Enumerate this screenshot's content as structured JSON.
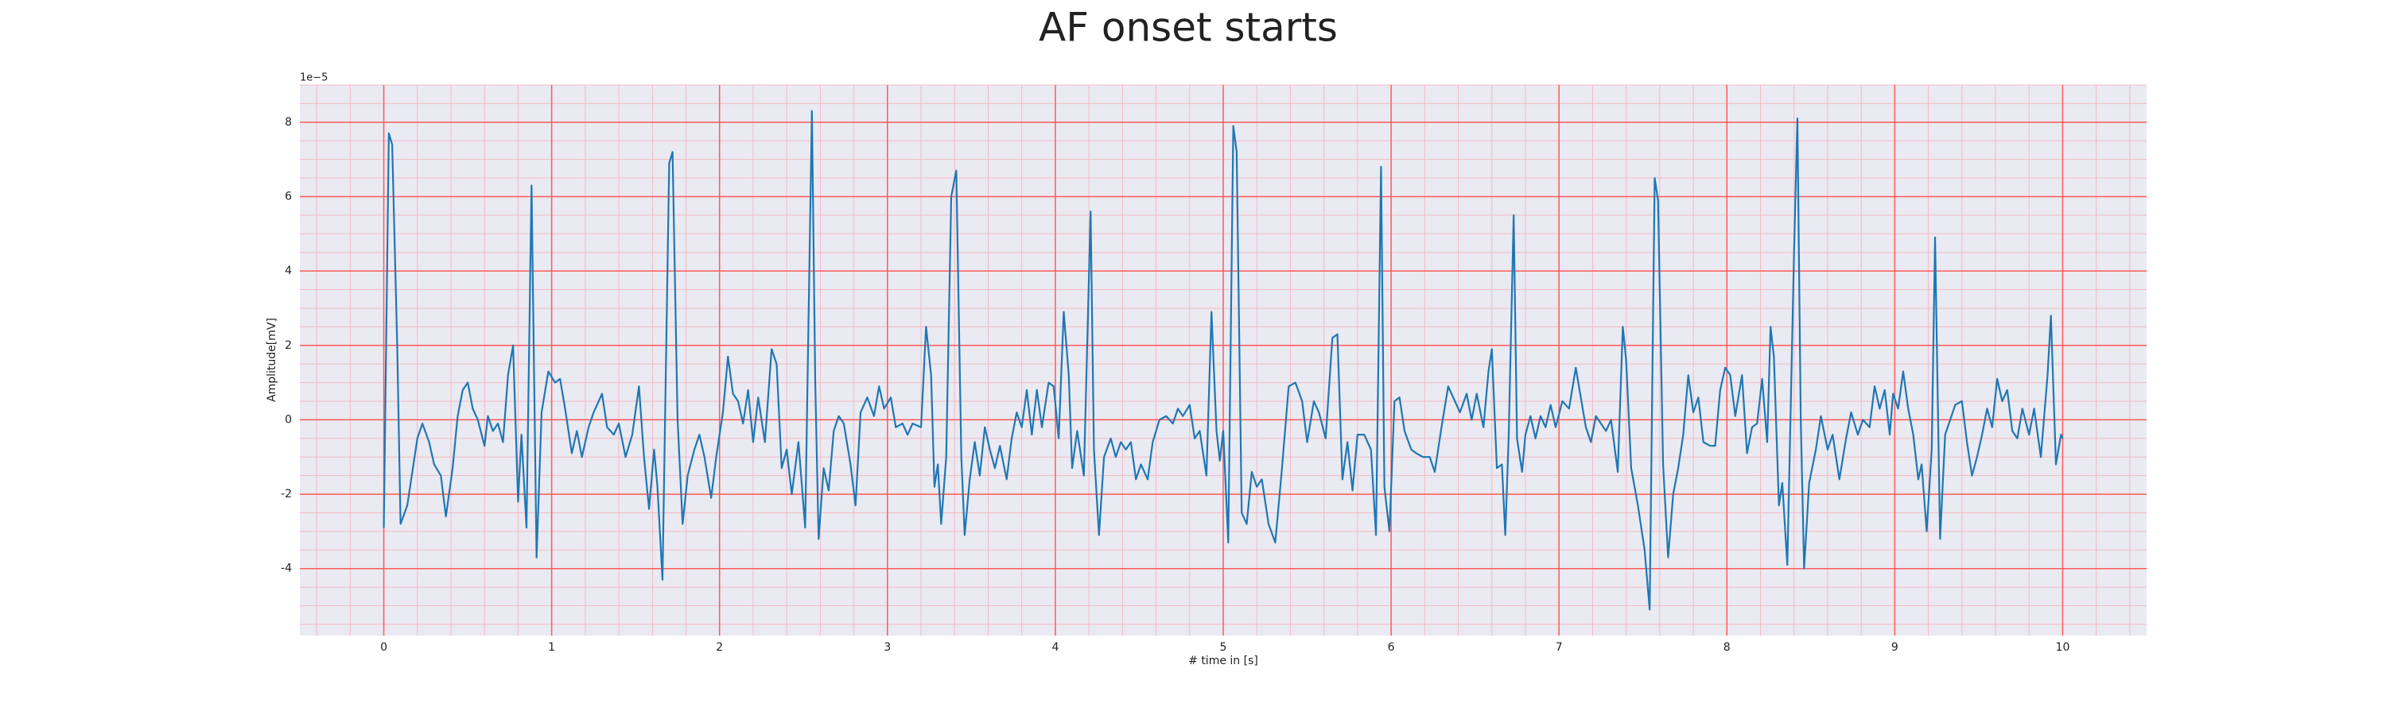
{
  "chart_data": {
    "type": "line",
    "title": "AF onset starts",
    "xlabel": "# time in [s]",
    "ylabel": "Amplitude[mV]",
    "y_offset_label": "1e−5",
    "xlim": [
      -0.5,
      10.5
    ],
    "ylim": [
      -5.8,
      9.0
    ],
    "xticks": [
      0,
      1,
      2,
      3,
      4,
      5,
      6,
      7,
      8,
      9,
      10
    ],
    "yticks": [
      -4,
      -2,
      0,
      2,
      4,
      6,
      8
    ],
    "grid": true,
    "grid_color": "#ff5a5a",
    "minor_grid": true,
    "minor_grid_color": "#f5b8c4",
    "x_minor_step": 0.2,
    "y_minor_step": 0.5,
    "background": "#eaeaf2",
    "series": [
      {
        "color": "#1f77b4",
        "x": [
          0,
          0.03,
          0.05,
          0.08,
          0.1,
          0.14,
          0.2,
          0.23,
          0.27,
          0.3,
          0.34,
          0.37,
          0.41,
          0.44,
          0.47,
          0.5,
          0.53,
          0.56,
          0.6,
          0.62,
          0.65,
          0.68,
          0.71,
          0.74,
          0.77,
          0.8,
          0.82,
          0.85,
          0.88,
          0.91,
          0.94,
          0.98,
          1.02,
          1.05,
          1.08,
          1.12,
          1.15,
          1.18,
          1.22,
          1.25,
          1.3,
          1.33,
          1.37,
          1.4,
          1.44,
          1.48,
          1.52,
          1.55,
          1.58,
          1.61,
          1.63,
          1.66,
          1.7,
          1.72,
          1.75,
          1.78,
          1.81,
          1.85,
          1.88,
          1.91,
          1.95,
          1.98,
          2.02,
          2.05,
          2.08,
          2.11,
          2.14,
          2.17,
          2.2,
          2.23,
          2.27,
          2.31,
          2.34,
          2.37,
          2.4,
          2.43,
          2.47,
          2.51,
          2.55,
          2.57,
          2.59,
          2.62,
          2.65,
          2.68,
          2.71,
          2.74,
          2.78,
          2.81,
          2.84,
          2.88,
          2.92,
          2.95,
          2.98,
          3.02,
          3.05,
          3.09,
          3.12,
          3.15,
          3.2,
          3.23,
          3.26,
          3.28,
          3.3,
          3.32,
          3.35,
          3.38,
          3.41,
          3.44,
          3.46,
          3.49,
          3.52,
          3.55,
          3.58,
          3.61,
          3.64,
          3.67,
          3.71,
          3.74,
          3.77,
          3.8,
          3.83,
          3.86,
          3.89,
          3.92,
          3.96,
          3.99,
          4.02,
          4.05,
          4.08,
          4.1,
          4.13,
          4.17,
          4.21,
          4.23,
          4.26,
          4.29,
          4.33,
          4.36,
          4.39,
          4.42,
          4.45,
          4.48,
          4.51,
          4.55,
          4.58,
          4.62,
          4.66,
          4.7,
          4.73,
          4.76,
          4.8,
          4.83,
          4.86,
          4.9,
          4.93,
          4.96,
          4.98,
          5.0,
          5.03,
          5.06,
          5.08,
          5.11,
          5.14,
          5.17,
          5.2,
          5.23,
          5.27,
          5.31,
          5.35,
          5.39,
          5.43,
          5.47,
          5.5,
          5.54,
          5.57,
          5.61,
          5.65,
          5.68,
          5.71,
          5.74,
          5.77,
          5.8,
          5.84,
          5.88,
          5.91,
          5.94,
          5.96,
          5.99,
          6.02,
          6.05,
          6.08,
          6.12,
          6.15,
          6.19,
          6.23,
          6.26,
          6.3,
          6.34,
          6.38,
          6.41,
          6.45,
          6.48,
          6.51,
          6.55,
          6.58,
          6.6,
          6.63,
          6.66,
          6.68,
          6.7,
          6.73,
          6.75,
          6.78,
          6.8,
          6.83,
          6.86,
          6.89,
          6.92,
          6.95,
          6.98,
          7.02,
          7.06,
          7.1,
          7.13,
          7.16,
          7.19,
          7.22,
          7.25,
          7.28,
          7.31,
          7.35,
          7.38,
          7.4,
          7.43,
          7.47,
          7.51,
          7.54,
          7.57,
          7.59,
          7.62,
          7.65,
          7.68,
          7.71,
          7.74,
          7.77,
          7.8,
          7.83,
          7.86,
          7.9,
          7.93,
          7.96,
          7.99,
          8.02,
          8.05,
          8.09,
          8.12,
          8.15,
          8.18,
          8.21,
          8.24,
          8.26,
          8.28,
          8.31,
          8.33,
          8.36,
          8.4,
          8.42,
          8.44,
          8.46,
          8.49,
          8.53,
          8.56,
          8.6,
          8.63,
          8.67,
          8.71,
          8.74,
          8.78,
          8.81,
          8.85,
          8.88,
          8.91,
          8.94,
          8.97,
          8.99,
          9.02,
          9.05,
          9.08,
          9.11,
          9.14,
          9.16,
          9.19,
          9.22,
          9.24,
          9.27,
          9.3,
          9.33,
          9.36,
          9.4,
          9.43,
          9.46,
          9.49,
          9.52,
          9.55,
          9.58,
          9.61,
          9.64,
          9.67,
          9.7,
          9.73,
          9.76,
          9.8,
          9.83,
          9.87,
          9.91,
          9.93,
          9.96,
          9.99,
          10.0
        ],
        "values": [
          -2.9,
          7.7,
          7.4,
          2.0,
          -2.8,
          -2.3,
          -0.5,
          -0.1,
          -0.6,
          -1.2,
          -1.5,
          -2.6,
          -1.3,
          0.1,
          0.8,
          1.0,
          0.3,
          0.0,
          -0.7,
          0.1,
          -0.3,
          -0.1,
          -0.6,
          1.2,
          2.0,
          -2.2,
          -0.4,
          -2.9,
          6.3,
          -3.7,
          0.2,
          1.3,
          1.0,
          1.1,
          0.3,
          -0.9,
          -0.3,
          -1.0,
          -0.2,
          0.2,
          0.7,
          -0.2,
          -0.4,
          -0.1,
          -1.0,
          -0.4,
          0.9,
          -1.0,
          -2.4,
          -0.8,
          -1.8,
          -4.3,
          6.9,
          7.2,
          0.0,
          -2.8,
          -1.5,
          -0.8,
          -0.4,
          -1.0,
          -2.1,
          -1.0,
          0.2,
          1.7,
          0.7,
          0.5,
          -0.1,
          0.8,
          -0.6,
          0.6,
          -0.6,
          1.9,
          1.5,
          -1.3,
          -0.8,
          -2.0,
          -0.6,
          -2.9,
          8.3,
          1.0,
          -3.2,
          -1.3,
          -1.9,
          -0.3,
          0.1,
          -0.1,
          -1.2,
          -2.3,
          0.2,
          0.6,
          0.1,
          0.9,
          0.3,
          0.6,
          -0.2,
          -0.1,
          -0.4,
          -0.1,
          -0.2,
          2.5,
          1.2,
          -1.8,
          -1.2,
          -2.8,
          -1.0,
          6.0,
          6.7,
          -1.0,
          -3.1,
          -1.6,
          -0.6,
          -1.5,
          -0.2,
          -0.8,
          -1.3,
          -0.7,
          -1.6,
          -0.5,
          0.2,
          -0.2,
          0.8,
          -0.4,
          0.8,
          -0.2,
          1.0,
          0.9,
          -0.5,
          2.9,
          1.2,
          -1.3,
          -0.3,
          -1.5,
          5.6,
          -0.8,
          -3.1,
          -1.0,
          -0.5,
          -1.0,
          -0.6,
          -0.8,
          -0.6,
          -1.6,
          -1.2,
          -1.6,
          -0.6,
          0.0,
          0.1,
          -0.1,
          0.3,
          0.1,
          0.4,
          -0.5,
          -0.3,
          -1.5,
          2.9,
          -0.3,
          -1.1,
          -0.3,
          -3.3,
          7.9,
          7.2,
          -2.5,
          -2.8,
          -1.4,
          -1.8,
          -1.6,
          -2.8,
          -3.3,
          -1.3,
          0.9,
          1.0,
          0.5,
          -0.6,
          0.5,
          0.2,
          -0.5,
          2.2,
          2.3,
          -1.6,
          -0.6,
          -1.9,
          -0.4,
          -0.4,
          -0.8,
          -3.1,
          6.8,
          -1.8,
          -3.0,
          0.5,
          0.6,
          -0.3,
          -0.8,
          -0.9,
          -1.0,
          -1.0,
          -1.4,
          -0.2,
          0.9,
          0.5,
          0.2,
          0.7,
          0.0,
          0.7,
          -0.2,
          1.3,
          1.9,
          -1.3,
          -1.2,
          -3.1,
          -0.5,
          5.5,
          -0.5,
          -1.4,
          -0.4,
          0.1,
          -0.5,
          0.1,
          -0.2,
          0.4,
          -0.2,
          0.5,
          0.3,
          1.4,
          0.6,
          -0.2,
          -0.6,
          0.1,
          -0.1,
          -0.3,
          0.0,
          -1.4,
          2.5,
          1.6,
          -1.3,
          -2.3,
          -3.5,
          -5.1,
          6.5,
          5.9,
          -1.2,
          -3.7,
          -2.0,
          -1.3,
          -0.4,
          1.2,
          0.2,
          0.6,
          -0.6,
          -0.7,
          -0.7,
          0.8,
          1.4,
          1.2,
          0.1,
          1.2,
          -0.9,
          -0.2,
          -0.1,
          1.1,
          -0.6,
          2.5,
          1.7,
          -2.3,
          -1.7,
          -3.9,
          4.5,
          8.1,
          0.0,
          -4.0,
          -1.7,
          -0.8,
          0.1,
          -0.8,
          -0.4,
          -1.6,
          -0.5,
          0.2,
          -0.4,
          0.0,
          -0.2,
          0.9,
          0.3,
          0.8,
          -0.4,
          0.7,
          0.3,
          1.3,
          0.3,
          -0.4,
          -1.6,
          -1.2,
          -3.0,
          -0.8,
          4.9,
          -3.2,
          -0.4,
          0.0,
          0.4,
          0.5,
          -0.6,
          -1.5,
          -1.0,
          -0.4,
          0.3,
          -0.2,
          1.1,
          0.5,
          0.8,
          -0.3,
          -0.5,
          0.3,
          -0.4,
          0.3,
          -1.0,
          1.2,
          2.8,
          -1.2,
          -0.4,
          -0.5
        ]
      }
    ]
  }
}
